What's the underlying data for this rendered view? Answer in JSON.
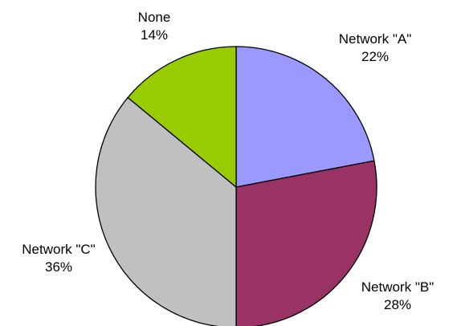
{
  "chart_data": {
    "type": "pie",
    "title": "",
    "slices": [
      {
        "label": "Network \"A\"",
        "value": 22,
        "value_label": "22%",
        "color": "#9999ff"
      },
      {
        "label": "Network \"B\"",
        "value": 28,
        "value_label": "28%",
        "color": "#993366"
      },
      {
        "label": "Network \"C\"",
        "value": 36,
        "value_label": "36%",
        "color": "#c0c0c0"
      },
      {
        "label": "None",
        "value": 14,
        "value_label": "14%",
        "color": "#99cc00"
      }
    ],
    "start": "12 o'clock",
    "direction": "clockwise",
    "legend": "none"
  }
}
